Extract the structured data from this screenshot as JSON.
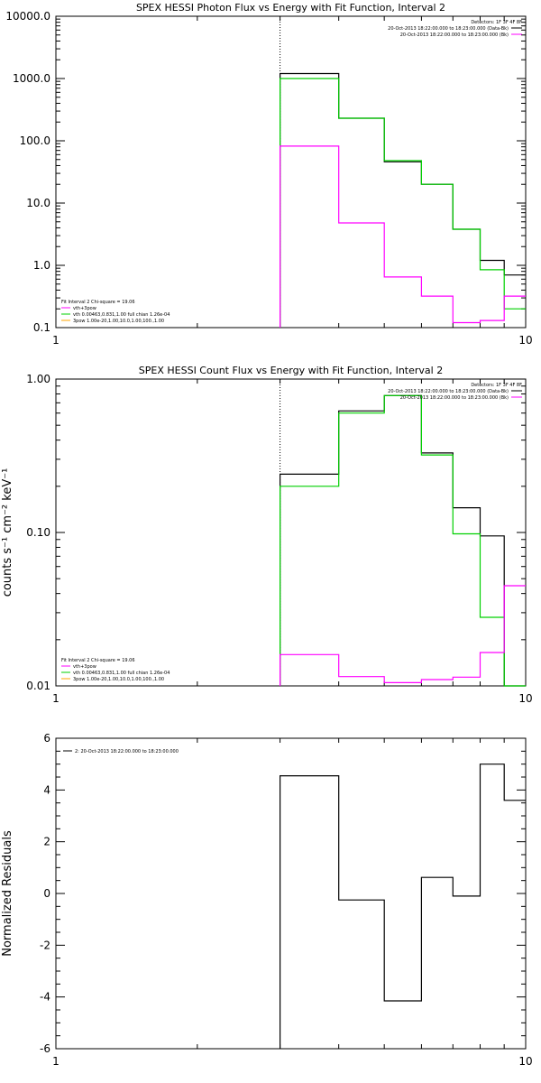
{
  "colors": {
    "data": "#000000",
    "model": "#00d000",
    "background": "#ff00ff",
    "marker": "#000000"
  },
  "chart_data": [
    {
      "type": "line",
      "title": "SPEX HESSI Photon Flux vs Energy with Fit Function, Interval 2",
      "xlabel": "",
      "ylabel": "",
      "x_scale": "log",
      "y_scale": "log",
      "xlim": [
        1,
        10
      ],
      "ylim": [
        0.1,
        10000
      ],
      "x_ticks": [
        {
          "value": 1,
          "label": "1"
        },
        {
          "value": 10,
          "label": "10"
        }
      ],
      "y_ticks": [
        {
          "value": 10000,
          "label": "10000.0"
        },
        {
          "value": 1000,
          "label": "1000.0"
        },
        {
          "value": 100,
          "label": "100.0"
        },
        {
          "value": 10,
          "label": "10.0"
        },
        {
          "value": 1,
          "label": "1.0"
        },
        {
          "value": 0.1,
          "label": "0.1"
        }
      ],
      "vline_x": 3,
      "edges": [
        3,
        4,
        5,
        6,
        7,
        8,
        9,
        10
      ],
      "series": [
        {
          "color": "#000000",
          "values": [
            1200,
            230,
            46,
            20,
            3.8,
            1.2,
            0.7
          ]
        },
        {
          "color": "#00d000",
          "values": [
            1000,
            230,
            48,
            20,
            3.8,
            0.85,
            0.2
          ]
        },
        {
          "color": "#ff00ff",
          "values": [
            82,
            4.8,
            0.65,
            0.32,
            0.12,
            0.13,
            0.32
          ]
        }
      ],
      "legend_top": {
        "position": "top-right",
        "header": "Detectors: 1F 3F 4F 8F",
        "entries": [
          {
            "label": "20-Oct-2013 18:22:00.000 to 18:23:00.000 (Data-Bk)",
            "color": "#000000"
          },
          {
            "label": "20-Oct-2013 18:22:00.000 to 18:23:00.000 (Bk)",
            "color": "#ff00ff"
          }
        ]
      },
      "legend_bottom": {
        "position": "bottom-left",
        "header": "Fit Interval  2    Chi-square = 19.06",
        "entries": [
          {
            "label": "vth+3pow",
            "color": "#ff00ff"
          },
          {
            "label": "vth 0.00463,0.831,1.00   full chian 1.26e-04",
            "color": "#00d000"
          },
          {
            "label": "3pow 1.00e-20,1.00,10.0,1.00,100.,1.00",
            "color": "#ffa500"
          }
        ]
      }
    },
    {
      "type": "line",
      "title": "SPEX HESSI Count Flux vs Energy with Fit Function, Interval 2",
      "xlabel": "",
      "ylabel": "counts s⁻¹ cm⁻² keV⁻¹",
      "x_scale": "log",
      "y_scale": "log",
      "xlim": [
        1,
        10
      ],
      "ylim": [
        0.01,
        1
      ],
      "x_ticks": [
        {
          "value": 1,
          "label": "1"
        },
        {
          "value": 10,
          "label": "10"
        }
      ],
      "y_ticks": [
        {
          "value": 1,
          "label": "1.00"
        },
        {
          "value": 0.1,
          "label": "0.10"
        },
        {
          "value": 0.01,
          "label": "0.01"
        }
      ],
      "vline_x": 3,
      "edges": [
        3,
        4,
        5,
        6,
        7,
        8,
        9,
        10
      ],
      "series": [
        {
          "color": "#000000",
          "values": [
            0.24,
            0.62,
            0.78,
            0.33,
            0.145,
            0.095,
            0.01
          ]
        },
        {
          "color": "#00d000",
          "values": [
            0.2,
            0.6,
            0.78,
            0.32,
            0.098,
            0.028,
            0.01
          ]
        },
        {
          "color": "#ff00ff",
          "values": [
            0.016,
            0.0115,
            0.0105,
            0.011,
            0.0114,
            0.0165,
            0.045
          ]
        }
      ],
      "legend_top": {
        "position": "top-right",
        "header": "Detectors: 1F 3F 4F 8F",
        "entries": [
          {
            "label": "20-Oct-2013 18:22:00.000 to 18:23:00.000 (Data-Bk)",
            "color": "#000000"
          },
          {
            "label": "20-Oct-2013 18:22:00.000 to 18:23:00.000 (Bk)",
            "color": "#ff00ff"
          }
        ]
      },
      "legend_bottom": {
        "position": "bottom-left",
        "header": "Fit Interval  2    Chi-square = 19.06",
        "entries": [
          {
            "label": "vth+3pow",
            "color": "#ff00ff"
          },
          {
            "label": "vth 0.00463,0.831,1.00   full chian 1.26e-04",
            "color": "#00d000"
          },
          {
            "label": "3pow 1.00e-20,1.00,10.0,1.00,100.,1.00",
            "color": "#ffa500"
          }
        ]
      }
    },
    {
      "type": "line",
      "title": "",
      "xlabel": "",
      "ylabel": "Normalized Residuals",
      "x_scale": "log",
      "y_scale": "linear",
      "xlim": [
        1,
        10
      ],
      "ylim": [
        -6,
        6
      ],
      "x_ticks": [
        {
          "value": 1,
          "label": "1"
        },
        {
          "value": 10,
          "label": "10"
        }
      ],
      "y_ticks": [
        {
          "value": 6,
          "label": "6"
        },
        {
          "value": 4,
          "label": "4"
        },
        {
          "value": 2,
          "label": "2"
        },
        {
          "value": 0,
          "label": "0"
        },
        {
          "value": -2,
          "label": "-2"
        },
        {
          "value": -4,
          "label": "-4"
        },
        {
          "value": -6,
          "label": "-6"
        }
      ],
      "edges": [
        3,
        4,
        5,
        6,
        7,
        8,
        9,
        10
      ],
      "series": [
        {
          "color": "#000000",
          "values": [
            4.55,
            -0.25,
            -4.15,
            0.62,
            -0.1,
            5.0,
            3.6
          ]
        }
      ],
      "legend_top": {
        "position": "top-left",
        "header": "",
        "entries": [
          {
            "label": "2: 20-Oct-2013 18:22:00.000 to 18:23:00.000",
            "color": "#000000"
          }
        ]
      }
    }
  ]
}
